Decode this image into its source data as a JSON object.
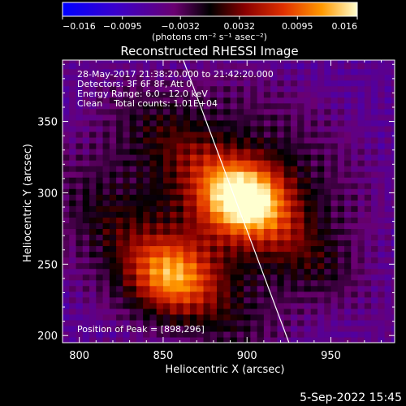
{
  "chart_data": {
    "type": "heatmap",
    "title": "Reconstructed RHESSI Image",
    "xlabel": "Heliocentric X (arcsec)",
    "ylabel": "Heliocentric Y (arcsec)",
    "xlim": [
      790,
      988
    ],
    "ylim": [
      195,
      393
    ],
    "xticks": [
      800,
      850,
      900,
      950
    ],
    "yticks": [
      200,
      250,
      300,
      350
    ],
    "colorbar": {
      "range": [
        -0.016,
        0.016
      ],
      "tick_values": [
        -0.016,
        -0.0095,
        -0.0032,
        0.0032,
        0.0095,
        0.016
      ],
      "tick_labels": [
        "−0.016",
        "−0.0095",
        "−0.0032",
        "0.0032",
        "0.0095",
        "0.016"
      ],
      "unit_label": "(photons cm⁻² s⁻¹ asec⁻²)"
    },
    "annotations": [
      "28-May-2017 21:38:20.000 to 21:42:20.000",
      "Detectors: 3F 6F 8F, Att 0",
      "Energy Range: 6.0 - 12.0 keV",
      "Clean    Total counts: 1.01E+04"
    ],
    "peak_label": "Position of Peak = [898,296]",
    "sources": [
      {
        "x": 898,
        "y": 296,
        "peak": 0.016
      },
      {
        "x": 855,
        "y": 242,
        "peak": 0.011
      }
    ],
    "limb_line": [
      [
        862,
        393
      ],
      [
        925,
        195
      ]
    ],
    "grid": false
  },
  "footer": {
    "timestamp": "5-Sep-2022 15:45"
  }
}
